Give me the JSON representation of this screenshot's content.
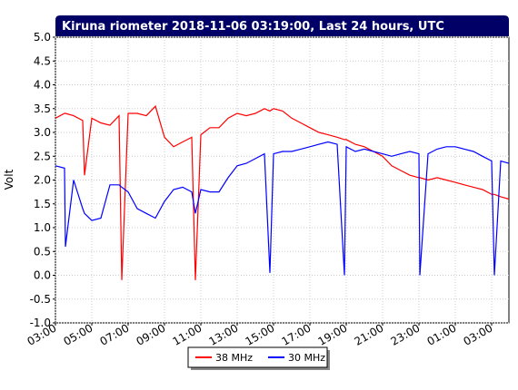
{
  "chart_data": {
    "type": "line",
    "title": "Kiruna riometer 2018-11-06 03:19:00, Last 24 hours, UTC",
    "y_label": "Volt",
    "x": [
      0,
      0.5,
      0.55,
      1,
      1.5,
      1.6,
      2,
      2.5,
      3,
      3.5,
      3.65,
      4,
      4.5,
      5,
      5.5,
      6,
      6.5,
      7,
      7.5,
      7.7,
      8,
      8.5,
      9,
      9.5,
      10,
      10.5,
      11,
      11.5,
      11.8,
      12,
      12.5,
      13,
      13.5,
      14,
      14.5,
      15,
      15.5,
      15.9,
      16,
      16.5,
      17,
      17.5,
      18,
      18.5,
      19,
      19.5,
      20,
      20.05,
      20.5,
      21,
      21.5,
      22,
      22.5,
      23,
      23.5,
      24,
      24.15,
      24.5,
      24.95
    ],
    "series": [
      {
        "name": "38 MHz",
        "color": "#ff0000",
        "values": [
          3.3,
          3.4,
          3.4,
          3.35,
          3.25,
          2.1,
          3.3,
          3.2,
          3.15,
          3.35,
          -0.1,
          3.4,
          3.4,
          3.35,
          3.55,
          2.9,
          2.7,
          2.8,
          2.9,
          -0.1,
          2.95,
          3.1,
          3.1,
          3.3,
          3.4,
          3.35,
          3.4,
          3.5,
          3.45,
          3.5,
          3.45,
          3.3,
          3.2,
          3.1,
          3.0,
          2.95,
          2.9,
          2.85,
          2.85,
          2.75,
          2.7,
          2.6,
          2.5,
          2.3,
          2.2,
          2.1,
          2.05,
          2.05,
          2.0,
          2.05,
          2.0,
          1.95,
          1.9,
          1.85,
          1.8,
          1.7,
          1.7,
          1.65,
          1.6
        ]
      },
      {
        "name": "30 MHz",
        "color": "#0000ff",
        "values": [
          2.3,
          2.25,
          0.6,
          2.0,
          1.4,
          1.3,
          1.15,
          1.2,
          1.9,
          1.9,
          1.85,
          1.75,
          1.4,
          1.3,
          1.2,
          1.55,
          1.8,
          1.85,
          1.75,
          1.3,
          1.8,
          1.75,
          1.75,
          2.05,
          2.3,
          2.35,
          2.45,
          2.55,
          0.05,
          2.55,
          2.6,
          2.6,
          2.65,
          2.7,
          2.75,
          2.8,
          2.75,
          0.0,
          2.7,
          2.6,
          2.65,
          2.6,
          2.55,
          2.5,
          2.55,
          2.6,
          2.55,
          0.0,
          2.55,
          2.65,
          2.7,
          2.7,
          2.65,
          2.6,
          2.5,
          2.4,
          0.0,
          2.4,
          2.35
        ]
      }
    ],
    "xlim": [
      0,
      24.95
    ],
    "xticks": [
      {
        "value": 0,
        "label": "03:00"
      },
      {
        "value": 2,
        "label": "05:00"
      },
      {
        "value": 4,
        "label": "07:00"
      },
      {
        "value": 6,
        "label": "09:00"
      },
      {
        "value": 8,
        "label": "11:00"
      },
      {
        "value": 10,
        "label": "13:00"
      },
      {
        "value": 12,
        "label": "15:00"
      },
      {
        "value": 14,
        "label": "17:00"
      },
      {
        "value": 16,
        "label": "19:00"
      },
      {
        "value": 18,
        "label": "21:00"
      },
      {
        "value": 20,
        "label": "23:00"
      },
      {
        "value": 22,
        "label": "01:00"
      },
      {
        "value": 24,
        "label": "03:00"
      }
    ],
    "ylim": [
      -1,
      5
    ],
    "yticks": [
      {
        "value": -1,
        "label": "-1.0"
      },
      -0.5,
      {
        "value": 0,
        "label": "0.0"
      },
      0.5,
      {
        "value": 1,
        "label": "1.0"
      },
      1.5,
      {
        "value": 2,
        "label": "2.0"
      },
      2.5,
      {
        "value": 3,
        "label": "3.0"
      },
      3.5,
      {
        "value": 4,
        "label": "4.0"
      },
      4.5,
      {
        "value": 5,
        "label": "5.0"
      }
    ],
    "grid": true
  }
}
